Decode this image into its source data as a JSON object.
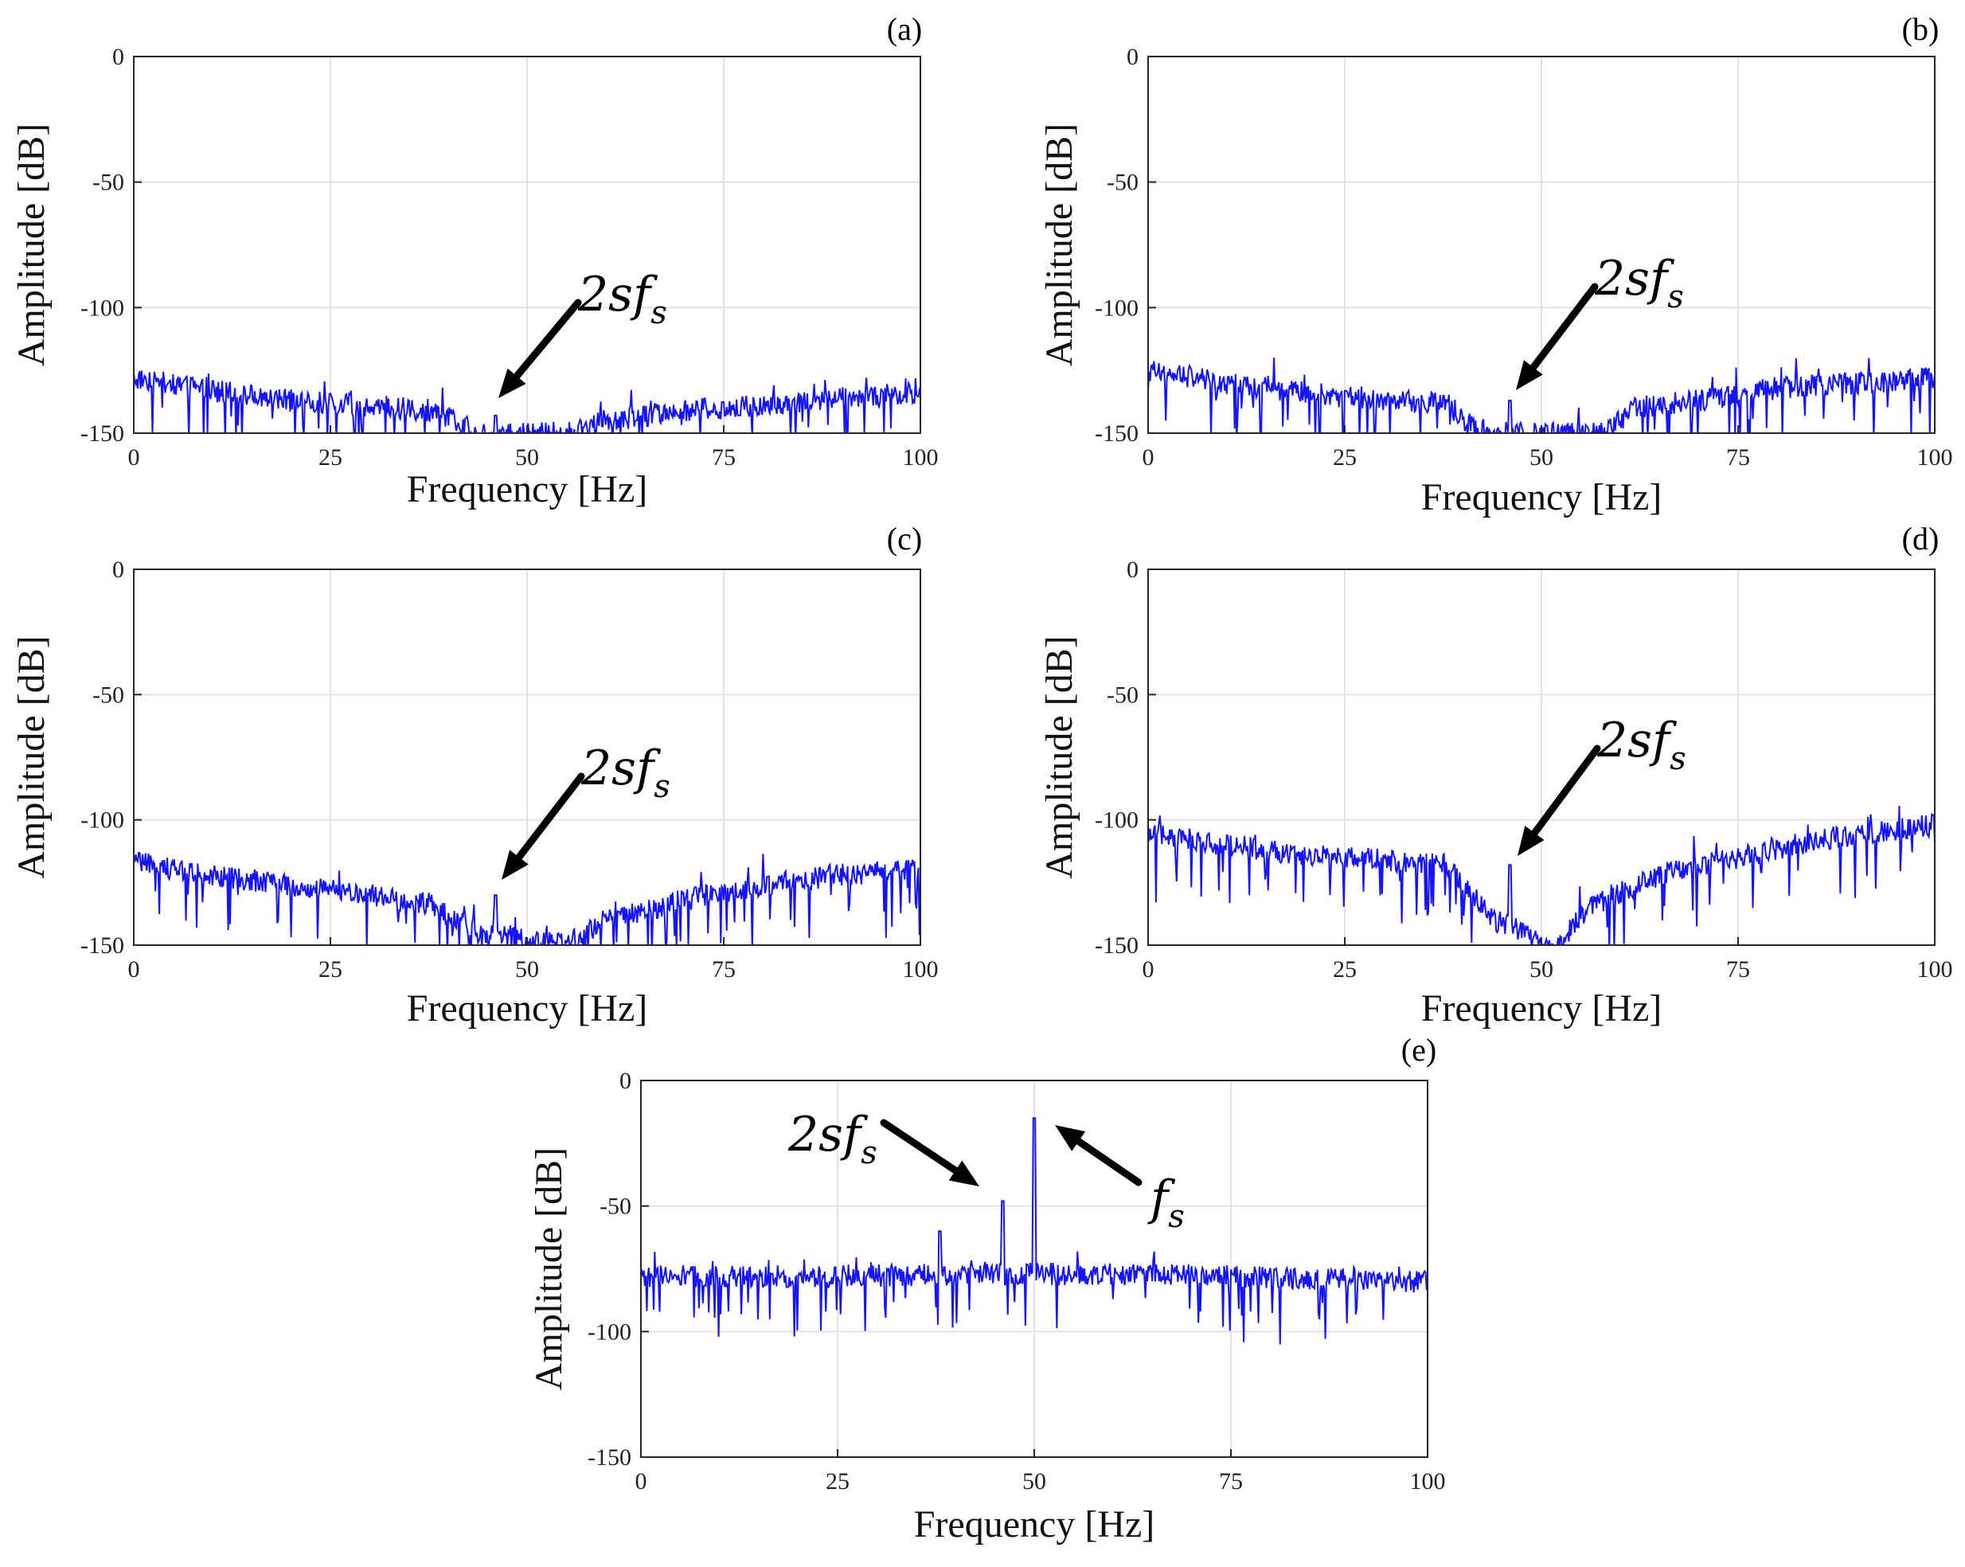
{
  "chart_data": [
    {
      "type": "line",
      "panel_label": "(a)",
      "xlabel": "Frequency [Hz]",
      "ylabel": "Amplitude [dB]",
      "xlim": [
        0,
        100
      ],
      "ylim": [
        -150,
        0
      ],
      "xticks": [
        "0",
        "25",
        "50",
        "75",
        "100"
      ],
      "yticks": [
        "0",
        "-50",
        "-100",
        "-150"
      ],
      "grid": true,
      "series": [
        {
          "name": "spectrum",
          "color": "#1414ff",
          "floor": [
            [
              0,
              -128
            ],
            [
              10,
              -133
            ],
            [
              20,
              -137
            ],
            [
              30,
              -139
            ],
            [
              38,
              -141
            ],
            [
              44,
              -150
            ],
            [
              56,
              -150
            ],
            [
              60,
              -145
            ],
            [
              70,
              -141
            ],
            [
              80,
              -139
            ],
            [
              90,
              -136
            ],
            [
              100,
              -134
            ]
          ],
          "spikes": [
            [
              46,
              -143
            ]
          ]
        }
      ],
      "annotations": [
        {
          "text": "2s",
          "sub_prefix": "f",
          "sub": "s",
          "x": 46,
          "y": -143
        }
      ]
    },
    {
      "type": "line",
      "panel_label": "(b)",
      "xlabel": "Frequency [Hz]",
      "ylabel": "Amplitude [dB]",
      "xlim": [
        0,
        100
      ],
      "ylim": [
        -150,
        0
      ],
      "xticks": [
        "0",
        "25",
        "50",
        "75",
        "100"
      ],
      "yticks": [
        "0",
        "-50",
        "-100",
        "-150"
      ],
      "grid": true,
      "series": [
        {
          "name": "spectrum",
          "color": "#1414ff",
          "floor": [
            [
              0,
              -125
            ],
            [
              10,
              -130
            ],
            [
              20,
              -134
            ],
            [
              30,
              -137
            ],
            [
              38,
              -138
            ],
            [
              42,
              -150
            ],
            [
              58,
              -150
            ],
            [
              62,
              -140
            ],
            [
              70,
              -137
            ],
            [
              80,
              -132
            ],
            [
              90,
              -130
            ],
            [
              100,
              -128
            ]
          ],
          "spikes": [
            [
              46,
              -137
            ]
          ]
        }
      ],
      "annotations": [
        {
          "text": "2s",
          "sub_prefix": "f",
          "sub": "s",
          "x": 46,
          "y": -137
        }
      ]
    },
    {
      "type": "line",
      "panel_label": "(c)",
      "xlabel": "Frequency [Hz]",
      "ylabel": "Amplitude [dB]",
      "xlim": [
        0,
        100
      ],
      "ylim": [
        -150,
        0
      ],
      "xticks": [
        "0",
        "25",
        "50",
        "75",
        "100"
      ],
      "yticks": [
        "0",
        "-50",
        "-100",
        "-150"
      ],
      "grid": true,
      "series": [
        {
          "name": "spectrum",
          "color": "#1414ff",
          "floor": [
            [
              0,
              -117
            ],
            [
              10,
              -122
            ],
            [
              20,
              -126
            ],
            [
              30,
              -130
            ],
            [
              38,
              -134
            ],
            [
              44,
              -145
            ],
            [
              55,
              -150
            ],
            [
              60,
              -140
            ],
            [
              70,
              -132
            ],
            [
              80,
              -126
            ],
            [
              90,
              -122
            ],
            [
              100,
              -120
            ]
          ],
          "spikes": [
            [
              46,
              -130
            ]
          ]
        }
      ],
      "annotations": [
        {
          "text": "2s",
          "sub_prefix": "f",
          "sub": "s",
          "x": 46,
          "y": -130
        }
      ]
    },
    {
      "type": "line",
      "panel_label": "(d)",
      "xlabel": "Frequency [Hz]",
      "ylabel": "Amplitude [dB]",
      "xlim": [
        0,
        100
      ],
      "ylim": [
        -150,
        0
      ],
      "xticks": [
        "0",
        "25",
        "50",
        "75",
        "100"
      ],
      "yticks": [
        "0",
        "-50",
        "-100",
        "-150"
      ],
      "grid": true,
      "series": [
        {
          "name": "spectrum",
          "color": "#1414ff",
          "floor": [
            [
              0,
              -105
            ],
            [
              10,
              -110
            ],
            [
              20,
              -114
            ],
            [
              30,
              -116
            ],
            [
              38,
              -118
            ],
            [
              44,
              -140
            ],
            [
              52,
              -150
            ],
            [
              56,
              -135
            ],
            [
              65,
              -122
            ],
            [
              75,
              -115
            ],
            [
              85,
              -108
            ],
            [
              100,
              -102
            ]
          ],
          "spikes": [
            [
              46,
              -118
            ]
          ]
        }
      ],
      "annotations": [
        {
          "text": "2s",
          "sub_prefix": "f",
          "sub": "s",
          "x": 46,
          "y": -118
        }
      ]
    },
    {
      "type": "line",
      "panel_label": "(e)",
      "xlabel": "Frequency [Hz]",
      "ylabel": "Amplitude [dB]",
      "xlim": [
        0,
        100
      ],
      "ylim": [
        -150,
        0
      ],
      "xticks": [
        "0",
        "25",
        "50",
        "75",
        "100"
      ],
      "yticks": [
        "0",
        "-50",
        "-100",
        "-150"
      ],
      "grid": true,
      "series": [
        {
          "name": "spectrum",
          "color": "#1414ff",
          "floor": [
            [
              0,
              -78
            ],
            [
              25,
              -78
            ],
            [
              50,
              -77
            ],
            [
              75,
              -78
            ],
            [
              100,
              -80
            ]
          ],
          "spikes": [
            [
              38,
              -60
            ],
            [
              46,
              -48
            ],
            [
              50,
              -15
            ]
          ]
        }
      ],
      "annotations": [
        {
          "text": "2s",
          "sub_prefix": "f",
          "sub": "s",
          "x": 46,
          "y": -48
        },
        {
          "text": "",
          "sub_prefix": "f",
          "sub": "s",
          "x": 50,
          "y": -15
        }
      ]
    }
  ]
}
